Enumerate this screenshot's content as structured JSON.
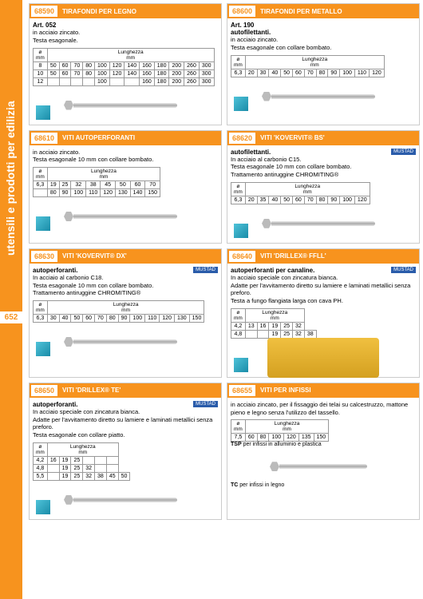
{
  "sidebar": {
    "text": "utensili e prodotti per edilizia",
    "page": "652"
  },
  "colors": {
    "accent": "#f7931e",
    "brand": "#2a5caa"
  },
  "products": [
    {
      "code": "68590",
      "title": "TIRAFONDI PER LEGNO",
      "art": "Art. 052",
      "desc": [
        "in acciaio zincato.",
        "Testa esagonale."
      ],
      "table_header": "Lunghezza",
      "unit_row": "ø mm",
      "unit_col": "mm",
      "rows": [
        [
          "8",
          "50",
          "60",
          "70",
          "80",
          "100",
          "120",
          "140",
          "160",
          "180",
          "200",
          "260",
          "300"
        ],
        [
          "10",
          "50",
          "60",
          "70",
          "80",
          "100",
          "120",
          "140",
          "160",
          "180",
          "200",
          "260",
          "300"
        ],
        [
          "12",
          "",
          "",
          "",
          "",
          "100",
          "",
          "",
          "160",
          "180",
          "200",
          "260",
          "300"
        ]
      ]
    },
    {
      "code": "68600",
      "title": "TIRAFONDI PER METALLO",
      "art": "Art. 190",
      "bold": "autofilettanti.",
      "desc": [
        "in acciaio zincato.",
        "Testa esagonale con collare bombato."
      ],
      "table_header": "Lunghezza",
      "rows": [
        [
          "6,3",
          "20",
          "30",
          "40",
          "50",
          "60",
          "70",
          "80",
          "90",
          "100",
          "110",
          "120"
        ]
      ]
    },
    {
      "code": "68610",
      "title": "VITI AUTOPERFORANTI",
      "desc": [
        "in acciaio zincato.",
        "Testa esagonale 10 mm con collare bombato."
      ],
      "table_header": "Lunghezza",
      "rows": [
        [
          "6,3",
          "19",
          "25",
          "32",
          "38",
          "45",
          "50",
          "60",
          "70"
        ],
        [
          "",
          "80",
          "90",
          "100",
          "110",
          "120",
          "130",
          "140",
          "150"
        ]
      ]
    },
    {
      "code": "68620",
      "title": "VITI 'KOVERVIT® BS'",
      "logo": "MUSTAD",
      "bold": "autofilettanti.",
      "desc": [
        "In acciaio al carbonio C15.",
        "Testa esagonale 10 mm con collare bombato.",
        "Trattamento antiruggine CHROMITING®"
      ],
      "table_header": "Lunghezza",
      "rows": [
        [
          "6,3",
          "20",
          "35",
          "40",
          "50",
          "60",
          "70",
          "80",
          "90",
          "100",
          "120"
        ]
      ]
    },
    {
      "code": "68630",
      "title": "VITI 'KOVERVIT® DX'",
      "logo": "MUSTAD",
      "bold": "autoperforanti.",
      "desc": [
        "In acciaio al carbonio C18.",
        "Testa esagonale 10 mm con collare bombato.",
        "Trattamento antiruggine CHROMITING®"
      ],
      "table_header": "Lunghezza",
      "rows": [
        [
          "6,3",
          "30",
          "40",
          "50",
          "60",
          "70",
          "80",
          "90",
          "100",
          "110",
          "120",
          "130",
          "150"
        ]
      ]
    },
    {
      "code": "68640",
      "title": "VITI 'DRILLEX® FFLL'",
      "logo": "MUSTAD",
      "bold": "autoperforanti per canaline.",
      "desc": [
        "In acciaio speciale con zincatura bianca.",
        "Adatte per l'avvitamento diretto su lamiere e laminati metallici senza preforo.",
        "Testa a fungo flangiata larga con cava PH."
      ],
      "table_header": "Lunghezza",
      "rows": [
        [
          "4,2",
          "13",
          "16",
          "19",
          "25",
          "32"
        ],
        [
          "4,8",
          "",
          "",
          "19",
          "25",
          "32",
          "38"
        ]
      ]
    },
    {
      "code": "68650",
      "title": "VITI 'DRILLEX® TE'",
      "logo": "MUSTAD",
      "bold": "autoperforanti.",
      "desc": [
        "In acciaio speciale con zincatura bianca.",
        "Adatte per l'avvitamento diretto su lamiere e laminati metallici senza preforo.",
        "Testa esagonale con collare piatto."
      ],
      "table_header": "Lunghezza",
      "rows": [
        [
          "4,2",
          "16",
          "19",
          "25",
          "",
          "",
          ""
        ],
        [
          "4,8",
          "",
          "19",
          "25",
          "32",
          "",
          ""
        ],
        [
          "5,5",
          "",
          "19",
          "25",
          "32",
          "38",
          "45",
          "50"
        ]
      ]
    },
    {
      "code": "68655",
      "title": "VITI PER INFISSI",
      "desc": [
        "in acciaio zincato, per il fissaggio dei telai su calcestruzzo, mattone pieno e legno senza l'utilizzo del tassello."
      ],
      "table_header": "Lunghezza",
      "rows": [
        [
          "7,5",
          "60",
          "80",
          "100",
          "120",
          "135",
          "150"
        ]
      ],
      "notes": [
        "TSP per infissi in alluminio e plastica",
        "TC per infissi in legno"
      ]
    }
  ]
}
